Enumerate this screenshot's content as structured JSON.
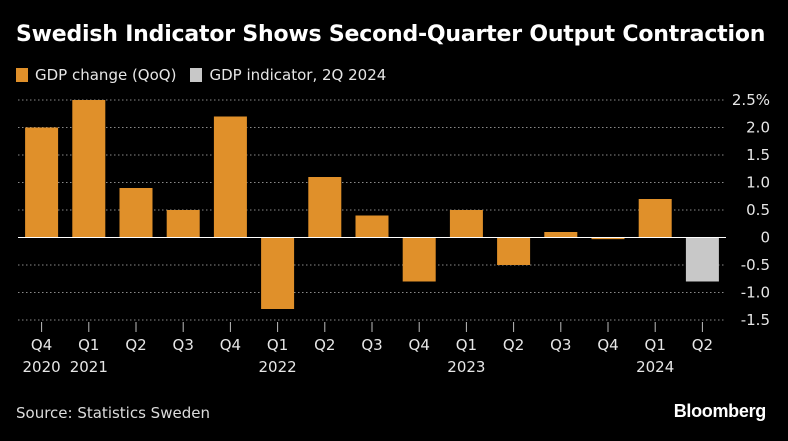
{
  "title": "Swedish Indicator Shows Second-Quarter Output Contraction",
  "source": "Source: Statistics Sweden",
  "brand": "Bloomberg",
  "colors": {
    "gdp": "#e0902a",
    "indicator": "#c8c8c8",
    "grid": "#8a8a8a",
    "text": "#ffffff"
  },
  "chart_data": {
    "type": "bar",
    "title": "Swedish Indicator Shows Second-Quarter Output Contraction",
    "xlabel": "",
    "ylabel": "",
    "ylim": [
      -1.5,
      2.5
    ],
    "yticks": [
      {
        "value": 2.5,
        "label": "2.5%"
      },
      {
        "value": 2.0,
        "label": "2.0"
      },
      {
        "value": 1.5,
        "label": "1.5"
      },
      {
        "value": 1.0,
        "label": "1.0"
      },
      {
        "value": 0.5,
        "label": "0.5"
      },
      {
        "value": 0,
        "label": "0"
      },
      {
        "value": -0.5,
        "label": "-0.5"
      },
      {
        "value": -1.0,
        "label": "-1.0"
      },
      {
        "value": -1.5,
        "label": "-1.5"
      }
    ],
    "legend_position": "top-left",
    "series": [
      {
        "name": "GDP change (QoQ)",
        "color": "#e0902a",
        "values": [
          2.0,
          2.5,
          0.9,
          0.5,
          2.2,
          -1.3,
          1.1,
          0.4,
          -0.8,
          0.5,
          -0.5,
          0.1,
          -0.03,
          0.7,
          null
        ]
      },
      {
        "name": "GDP indicator, 2Q 2024",
        "color": "#c8c8c8",
        "values": [
          null,
          null,
          null,
          null,
          null,
          null,
          null,
          null,
          null,
          null,
          null,
          null,
          null,
          null,
          -0.8
        ]
      }
    ],
    "categories": [
      "Q4",
      "Q1",
      "Q2",
      "Q3",
      "Q4",
      "Q1",
      "Q2",
      "Q3",
      "Q4",
      "Q1",
      "Q2",
      "Q3",
      "Q4",
      "Q1",
      "Q2"
    ],
    "years": [
      "2020",
      "2021",
      "",
      "",
      "",
      "2022",
      "",
      "",
      "",
      "2023",
      "",
      "",
      "",
      "2024",
      ""
    ]
  }
}
